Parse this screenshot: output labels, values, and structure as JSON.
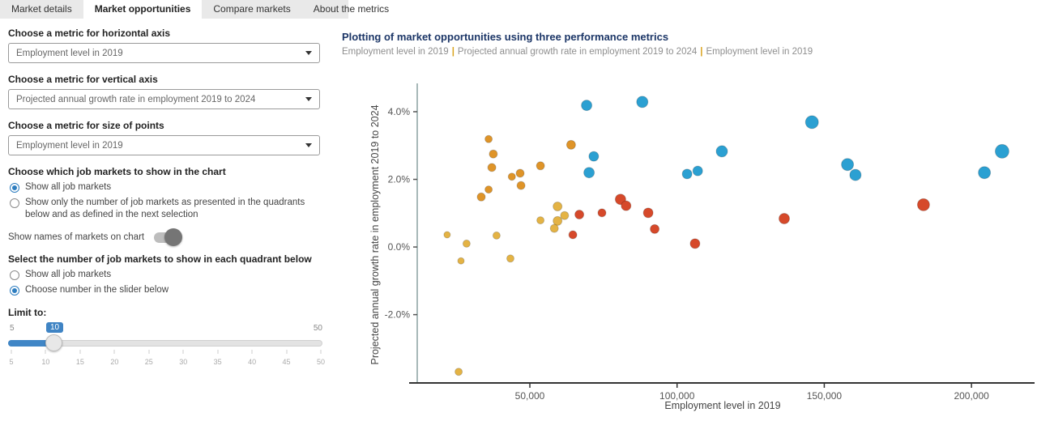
{
  "tabs": [
    {
      "label": "Market details",
      "active": false
    },
    {
      "label": "Market opportunities",
      "active": true
    },
    {
      "label": "Compare markets",
      "active": false
    },
    {
      "label": "About the metrics",
      "active": false
    }
  ],
  "sidebar": {
    "horizontal_axis": {
      "label": "Choose a metric for horizontal axis",
      "value": "Employment level in 2019"
    },
    "vertical_axis": {
      "label": "Choose a metric for vertical axis",
      "value": "Projected annual growth rate in employment 2019 to 2024"
    },
    "size_metric": {
      "label": "Choose a metric for size of points",
      "value": "Employment level in 2019"
    },
    "markets_filter": {
      "label": "Choose which job markets to show in the chart",
      "options": [
        {
          "label": "Show all job markets",
          "selected": true
        },
        {
          "label": "Show only the number of job markets as presented in the quadrants below and as defined in the next selection",
          "selected": false
        }
      ]
    },
    "show_names": {
      "label": "Show names of markets on chart",
      "on": false
    },
    "quadrant_select": {
      "label": "Select the number of job markets to show in each quadrant below",
      "options": [
        {
          "label": "Show all job markets",
          "selected": false
        },
        {
          "label": "Choose number in the slider below",
          "selected": true
        }
      ]
    },
    "slider": {
      "label": "Limit to:",
      "min": 5,
      "max": 50,
      "value": 10,
      "ticks": [
        5,
        10,
        15,
        20,
        25,
        30,
        35,
        40,
        45,
        50
      ]
    }
  },
  "chart": {
    "title": "Plotting of market opportunities using three performance metrics",
    "subtitle_parts": [
      "Employment level in 2019",
      "Projected annual growth rate in employment 2019 to 2024",
      "Employment level in 2019"
    ],
    "separator": "|"
  },
  "chart_data": {
    "type": "scatter",
    "title": "Plotting of market opportunities using three performance metrics",
    "xlabel": "Employment level in 2019",
    "ylabel": "Projected annual growth rate in employment 2019 to 2024",
    "xlim": [
      11750,
      219500
    ],
    "ylim": [
      -4.02,
      4.79
    ],
    "grid": false,
    "x_ticks": [
      {
        "v": 50000,
        "label": "50,000"
      },
      {
        "v": 100000,
        "label": "100,000"
      },
      {
        "v": 150000,
        "label": "150,000"
      },
      {
        "v": 200000,
        "label": "200,000"
      }
    ],
    "y_ticks": [
      {
        "v": 4,
        "label": "4.0%"
      },
      {
        "v": 2,
        "label": "2.0%"
      },
      {
        "v": 0,
        "label": "0.0%"
      },
      {
        "v": -2,
        "label": "-2.0%"
      }
    ],
    "series": [
      {
        "name": "orange-markets",
        "color": "#df9428",
        "points": [
          {
            "x": 36000,
            "y": 3.19,
            "r": 4.5
          },
          {
            "x": 37600,
            "y": 2.75,
            "r": 5
          },
          {
            "x": 37100,
            "y": 2.35,
            "r": 5
          },
          {
            "x": 64000,
            "y": 3.02,
            "r": 5.5
          },
          {
            "x": 53600,
            "y": 2.4,
            "r": 5
          },
          {
            "x": 46700,
            "y": 2.18,
            "r": 5
          },
          {
            "x": 43900,
            "y": 2.08,
            "r": 4.5
          },
          {
            "x": 47000,
            "y": 1.82,
            "r": 5
          },
          {
            "x": 36000,
            "y": 1.7,
            "r": 4.5
          },
          {
            "x": 33500,
            "y": 1.48,
            "r": 5
          }
        ]
      },
      {
        "name": "gold-markets",
        "color": "#e4b344",
        "points": [
          {
            "x": 59400,
            "y": 1.2,
            "r": 5.5
          },
          {
            "x": 61800,
            "y": 0.93,
            "r": 5
          },
          {
            "x": 53600,
            "y": 0.79,
            "r": 4.5
          },
          {
            "x": 59400,
            "y": 0.77,
            "r": 5.5
          },
          {
            "x": 58300,
            "y": 0.55,
            "r": 5
          },
          {
            "x": 21900,
            "y": 0.36,
            "r": 4
          },
          {
            "x": 38700,
            "y": 0.34,
            "r": 4.5
          },
          {
            "x": 28500,
            "y": 0.1,
            "r": 4.5
          },
          {
            "x": 26600,
            "y": -0.41,
            "r": 4
          },
          {
            "x": 43400,
            "y": -0.34,
            "r": 4.5
          },
          {
            "x": 25800,
            "y": -3.69,
            "r": 4.5
          }
        ]
      },
      {
        "name": "red-markets",
        "color": "#d6492a",
        "points": [
          {
            "x": 66800,
            "y": 0.96,
            "r": 5.5
          },
          {
            "x": 74500,
            "y": 1.01,
            "r": 5
          },
          {
            "x": 80800,
            "y": 1.41,
            "r": 6.5
          },
          {
            "x": 82700,
            "y": 1.22,
            "r": 6
          },
          {
            "x": 90200,
            "y": 1.01,
            "r": 6
          },
          {
            "x": 92400,
            "y": 0.53,
            "r": 5.5
          },
          {
            "x": 64600,
            "y": 0.36,
            "r": 5
          },
          {
            "x": 106100,
            "y": 0.1,
            "r": 6
          },
          {
            "x": 136400,
            "y": 0.84,
            "r": 6.5
          },
          {
            "x": 183700,
            "y": 1.25,
            "r": 7.5
          }
        ]
      },
      {
        "name": "blue-markets",
        "color": "#2ba0d2",
        "points": [
          {
            "x": 69300,
            "y": 4.19,
            "r": 6.5
          },
          {
            "x": 88200,
            "y": 4.29,
            "r": 7
          },
          {
            "x": 71700,
            "y": 2.68,
            "r": 6
          },
          {
            "x": 70100,
            "y": 2.2,
            "r": 6.5
          },
          {
            "x": 107000,
            "y": 2.25,
            "r": 6
          },
          {
            "x": 103400,
            "y": 2.16,
            "r": 6
          },
          {
            "x": 115200,
            "y": 2.83,
            "r": 7
          },
          {
            "x": 145800,
            "y": 3.69,
            "r": 8
          },
          {
            "x": 157900,
            "y": 2.44,
            "r": 7.5
          },
          {
            "x": 160600,
            "y": 2.13,
            "r": 7
          },
          {
            "x": 204400,
            "y": 2.2,
            "r": 7.5
          },
          {
            "x": 210400,
            "y": 2.83,
            "r": 8.5
          }
        ]
      }
    ]
  }
}
